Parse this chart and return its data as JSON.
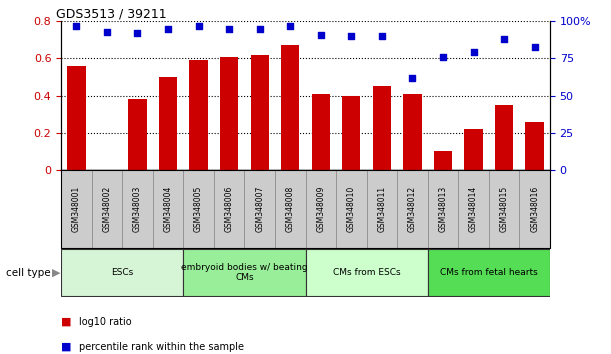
{
  "title": "GDS3513 / 39211",
  "samples": [
    "GSM348001",
    "GSM348002",
    "GSM348003",
    "GSM348004",
    "GSM348005",
    "GSM348006",
    "GSM348007",
    "GSM348008",
    "GSM348009",
    "GSM348010",
    "GSM348011",
    "GSM348012",
    "GSM348013",
    "GSM348014",
    "GSM348015",
    "GSM348016"
  ],
  "bar_values": [
    0.56,
    0.0,
    0.38,
    0.5,
    0.59,
    0.61,
    0.62,
    0.67,
    0.41,
    0.4,
    0.45,
    0.41,
    0.1,
    0.22,
    0.35,
    0.26
  ],
  "dot_values": [
    97,
    93,
    92,
    95,
    97,
    95,
    95,
    97,
    91,
    90,
    90,
    62,
    76,
    79,
    88,
    83
  ],
  "bar_color": "#cc0000",
  "dot_color": "#0000cc",
  "ylim_left": [
    0,
    0.8
  ],
  "ylim_right": [
    0,
    100
  ],
  "yticks_left": [
    0,
    0.2,
    0.4,
    0.6,
    0.8
  ],
  "yticks_right": [
    0,
    25,
    50,
    75,
    100
  ],
  "ytick_labels_right": [
    "0",
    "25",
    "50",
    "75",
    "100%"
  ],
  "cell_type_groups": [
    {
      "label": "ESCs",
      "start": 0,
      "end": 3,
      "color": "#d6f5d6"
    },
    {
      "label": "embryoid bodies w/ beating\nCMs",
      "start": 4,
      "end": 7,
      "color": "#99ee99"
    },
    {
      "label": "CMs from ESCs",
      "start": 8,
      "end": 11,
      "color": "#ccffcc"
    },
    {
      "label": "CMs from fetal hearts",
      "start": 12,
      "end": 15,
      "color": "#55dd55"
    }
  ],
  "legend_bar_label": "log10 ratio",
  "legend_dot_label": "percentile rank within the sample",
  "cell_type_label": "cell type",
  "background_color": "#ffffff",
  "tick_label_color_left": "#cc0000",
  "tick_label_color_right": "#0000cc",
  "tickbox_color": "#cccccc",
  "tickbox_edge": "#888888"
}
